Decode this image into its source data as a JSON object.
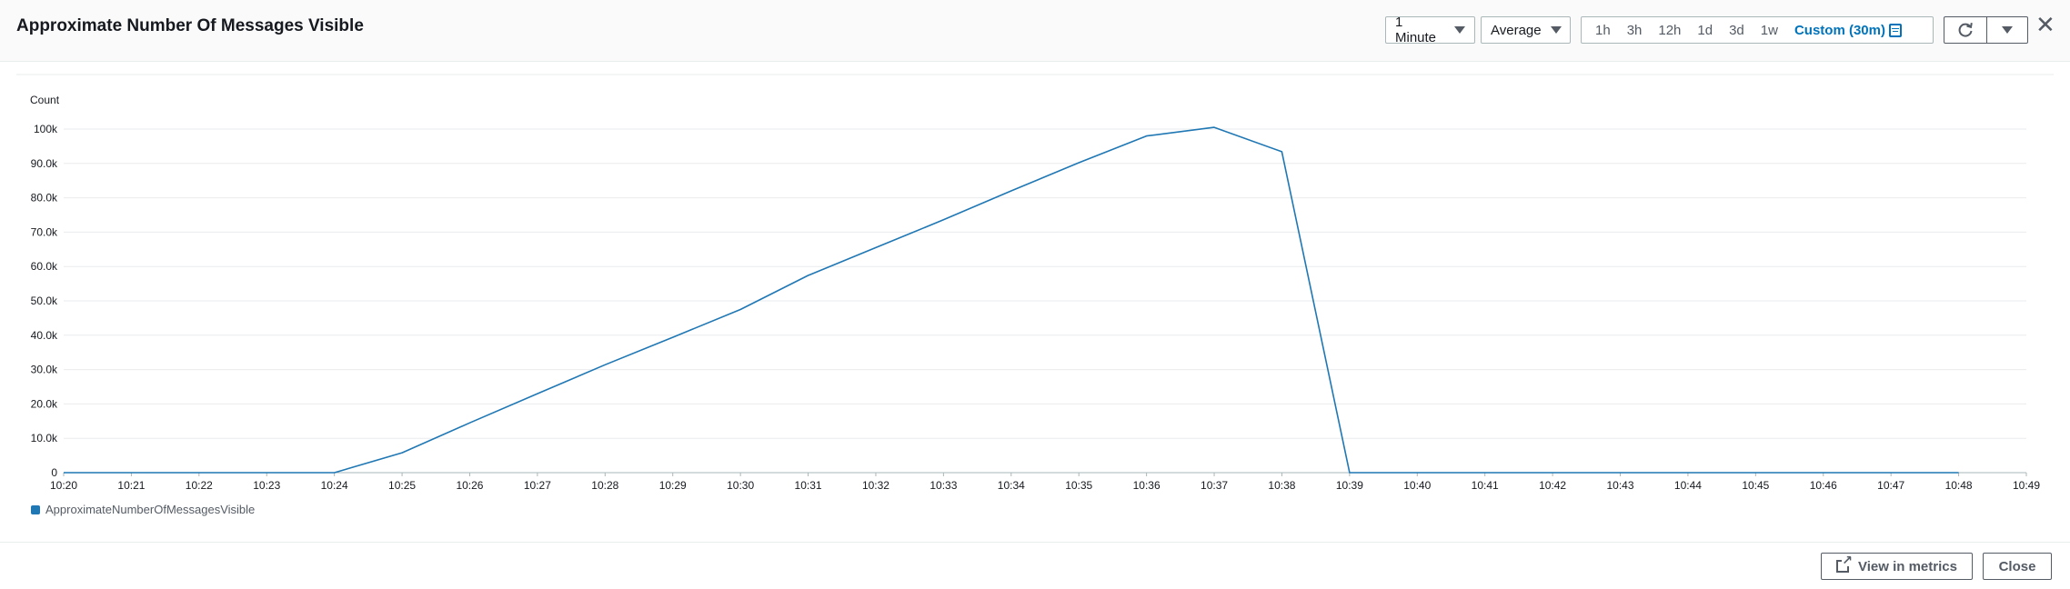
{
  "header": {
    "title": "Approximate Number Of Messages Visible",
    "period": "1 Minute",
    "statistic": "Average",
    "ranges": [
      "1h",
      "3h",
      "12h",
      "1d",
      "3d",
      "1w"
    ],
    "custom_range": "Custom (30m)",
    "icons": {
      "calendar": "calendar-icon",
      "refresh": "refresh-icon",
      "dropdown": "caret-down-icon",
      "close": "close-icon"
    }
  },
  "chart_data": {
    "type": "line",
    "ylabel": "Count",
    "yticks": [
      "0",
      "10.0k",
      "20.0k",
      "30.0k",
      "40.0k",
      "50.0k",
      "60.0k",
      "70.0k",
      "80.0k",
      "90.0k",
      "100k"
    ],
    "ylim": [
      0,
      100000
    ],
    "xticks": [
      "10:20",
      "10:21",
      "10:22",
      "10:23",
      "10:24",
      "10:25",
      "10:26",
      "10:27",
      "10:28",
      "10:29",
      "10:30",
      "10:31",
      "10:32",
      "10:33",
      "10:34",
      "10:35",
      "10:36",
      "10:37",
      "10:38",
      "10:39",
      "10:40",
      "10:41",
      "10:42",
      "10:43",
      "10:44",
      "10:45",
      "10:46",
      "10:47",
      "10:48",
      "10:49"
    ],
    "grid": true,
    "legend_position": "bottom-left",
    "series": [
      {
        "name": "ApproximateNumberOfMessagesVisible",
        "color": "#1f77b4",
        "x": [
          "10:20",
          "10:21",
          "10:22",
          "10:23",
          "10:24",
          "10:25",
          "10:26",
          "10:27",
          "10:28",
          "10:29",
          "10:30",
          "10:31",
          "10:32",
          "10:33",
          "10:34",
          "10:35",
          "10:36",
          "10:37",
          "10:38",
          "10:39",
          "10:40",
          "10:41",
          "10:42",
          "10:43",
          "10:44",
          "10:45",
          "10:46",
          "10:47",
          "10:48"
        ],
        "values": [
          0,
          0,
          0,
          0,
          0,
          5800,
          14500,
          23000,
          31400,
          39400,
          47500,
          57400,
          65500,
          73600,
          82000,
          90200,
          98000,
          100500,
          93400,
          0,
          0,
          0,
          0,
          0,
          0,
          0,
          0,
          0,
          0
        ]
      }
    ]
  },
  "footer": {
    "view_in_metrics": "View in metrics",
    "close": "Close",
    "icons": {
      "external": "external-link-icon"
    }
  }
}
